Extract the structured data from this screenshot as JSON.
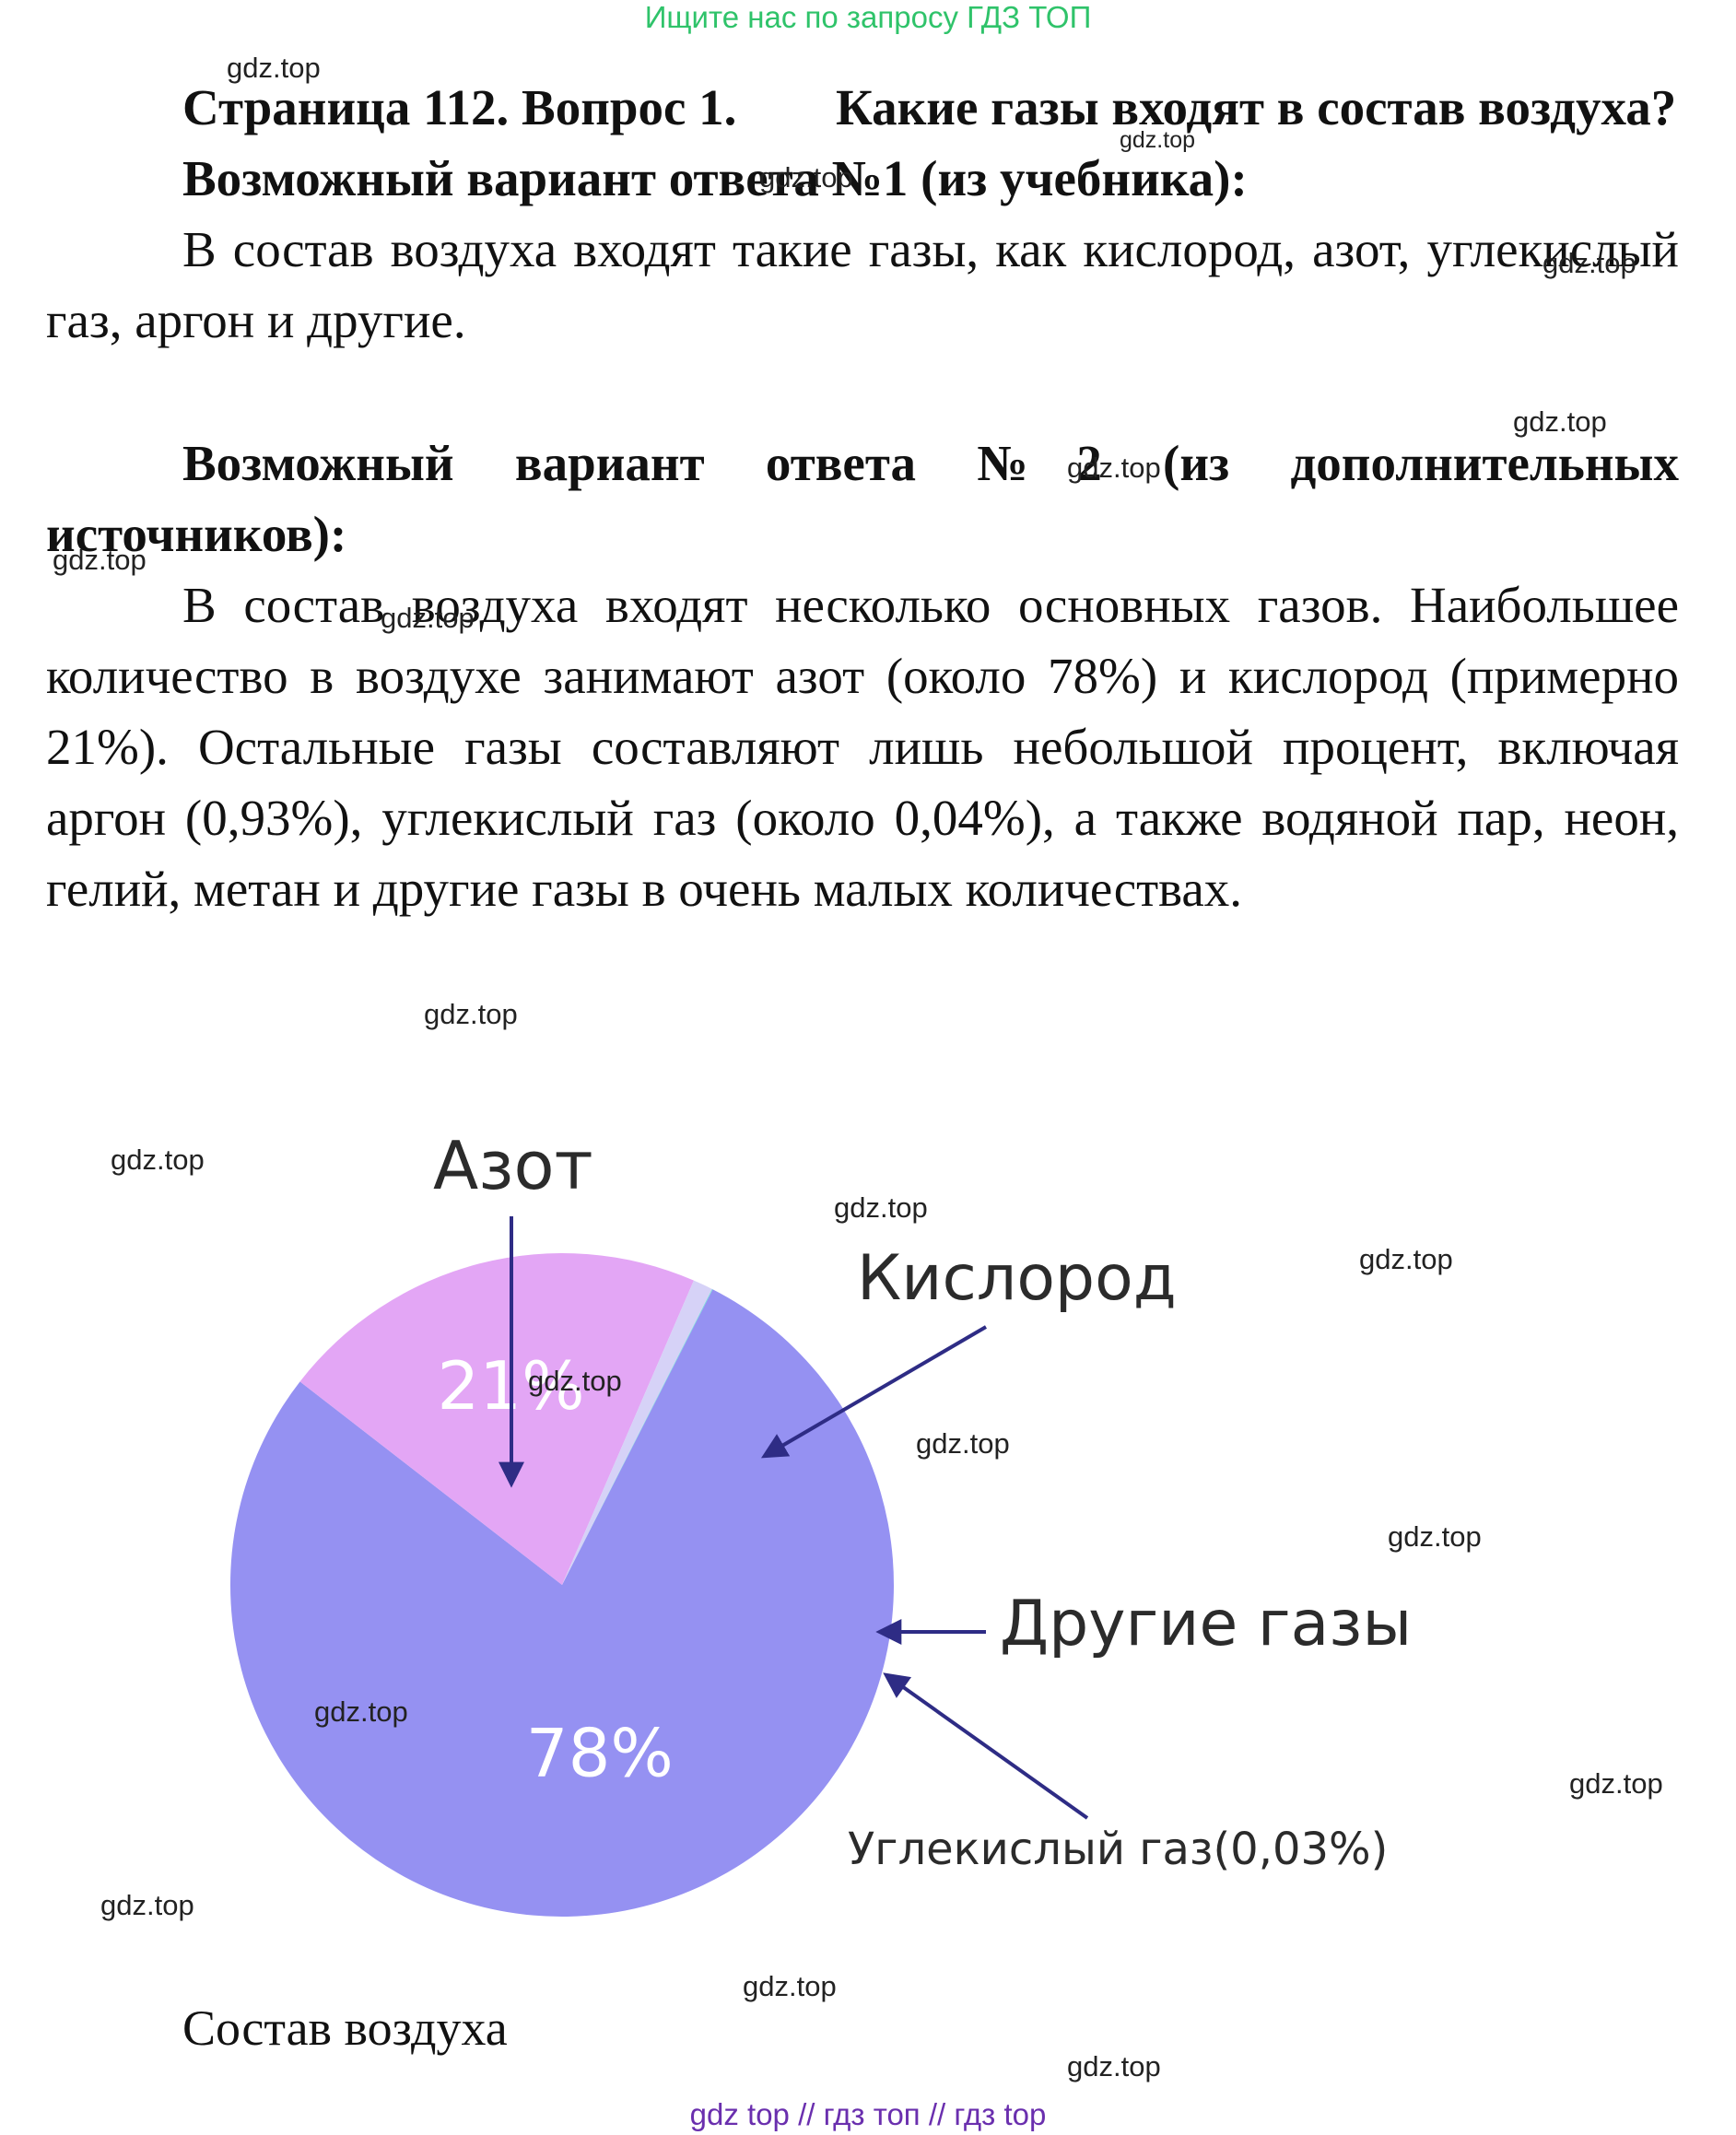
{
  "banner": {
    "text": "Ищите нас по запросу ГДЗ ТОП",
    "color": "#2fc36a"
  },
  "header": {
    "title": "Страница 112. Вопрос 1.",
    "question": "Какие газы входят в состав воздуха?"
  },
  "answer1": {
    "heading": "Возможный вариант ответа №1 (из учебника):",
    "text": "В состав воздуха входят такие газы, как кислород, азот, углекислый газ, аргон и другие."
  },
  "answer2": {
    "heading": "Возможный вариант ответа №2 (из дополнительных источников):",
    "text": "В состав воздуха входят несколько основных газов. Наибольшее количество в воздухе занимают азот (около 78%) и кислород (примерно 21%). Остальные газы составляют лишь небольшой процент, включая аргон (0,93%), углекислый газ (около 0,04%), а также водяной пар, неон, гелий, метан и другие газы в очень малых количествах."
  },
  "chart_data": {
    "type": "pie",
    "title": "",
    "slices": [
      {
        "name": "Азот",
        "value": 78,
        "label": "78%",
        "color": "#9591f2"
      },
      {
        "name": "Кислород",
        "value": 21,
        "label": "21%",
        "color": "#e3a6f5"
      },
      {
        "name": "Другие газы",
        "value": 0.97,
        "label": "",
        "color": "#d6d2f7"
      },
      {
        "name": "Углекислый газ(0,03%)",
        "value": 0.03,
        "label": "",
        "color": "#6fe0d8"
      }
    ],
    "annotations": [
      "Азот",
      "Кислород",
      "Другие газы",
      "Углекислый газ(0,03%)"
    ]
  },
  "caption": "Состав воздуха",
  "watermark": "gdz.top",
  "footer": {
    "links": [
      "gdz top",
      "гдз топ",
      "гдз top"
    ],
    "separator": "//",
    "color": "#6a2fae"
  }
}
